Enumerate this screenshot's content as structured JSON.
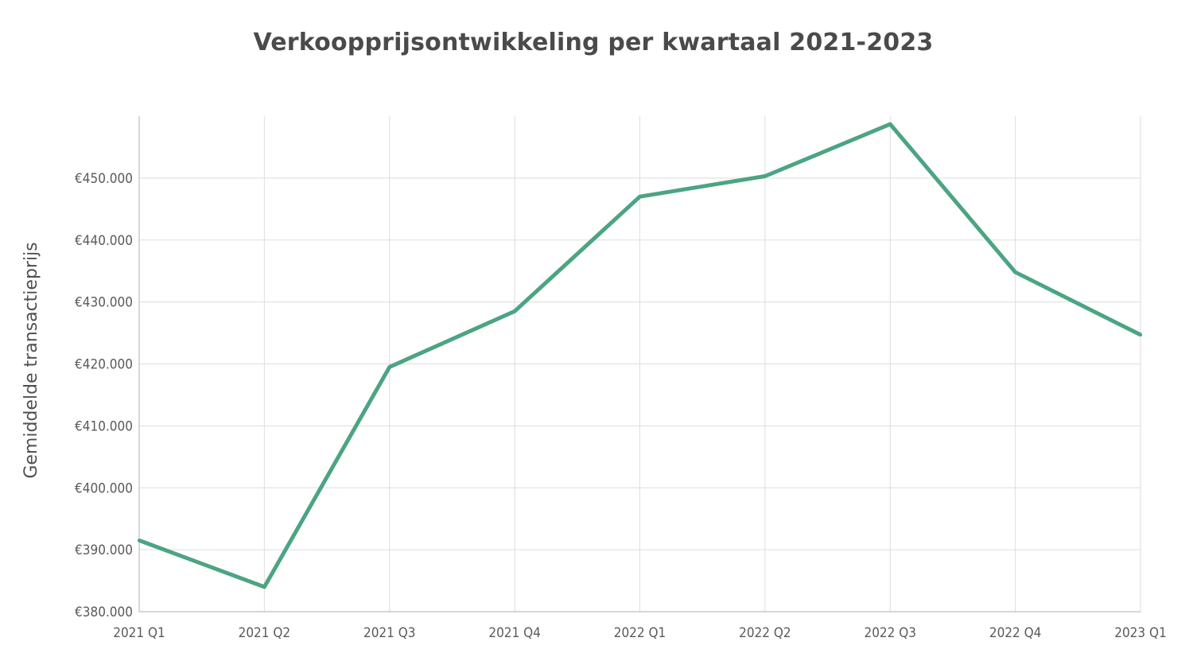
{
  "chart_data": {
    "type": "line",
    "title": "Verkoopprijsontwikkeling per kwartaal 2021-2023",
    "xlabel": "",
    "ylabel": "Gemiddelde transactieprijs",
    "categories": [
      "2021 Q1",
      "2021 Q2",
      "2021 Q3",
      "2021 Q4",
      "2022 Q1",
      "2022 Q2",
      "2022 Q3",
      "2022 Q4",
      "2023 Q1"
    ],
    "series": [
      {
        "values": [
          391500,
          384000,
          419500,
          428500,
          447000,
          450300,
          458700,
          434800,
          424700
        ],
        "color": "#4ca482"
      }
    ],
    "ylim": [
      380000,
      460000
    ],
    "yticks": [
      380000,
      390000,
      400000,
      410000,
      420000,
      430000,
      440000,
      450000
    ],
    "ytick_labels": [
      "€380.000",
      "€390.000",
      "€400.000",
      "€410.000",
      "€420.000",
      "€430.000",
      "€440.000",
      "€450.000"
    ],
    "grid": true,
    "legend": "none"
  }
}
